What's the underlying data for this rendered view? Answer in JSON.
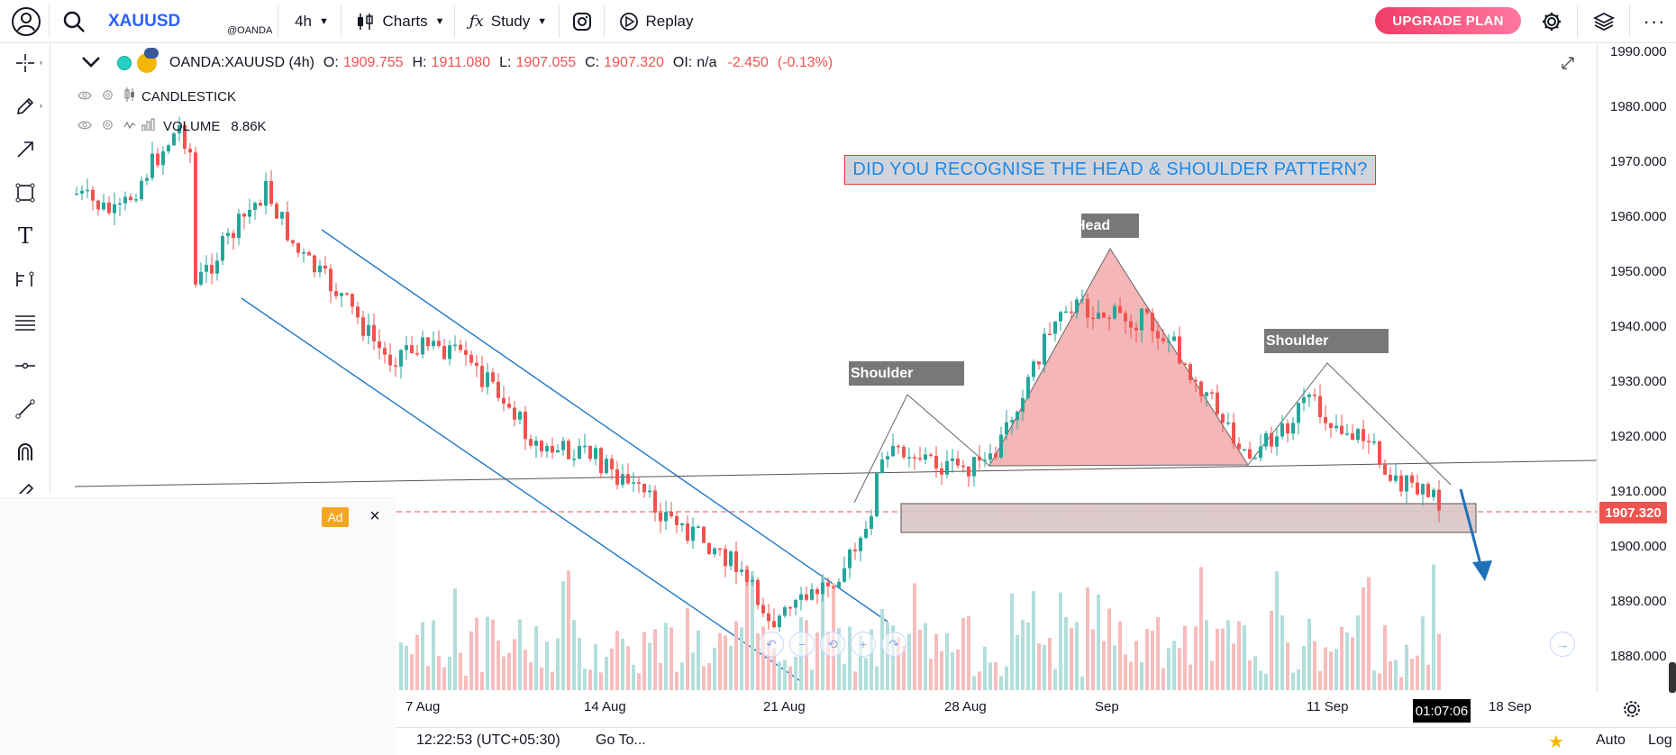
{
  "topbar": {
    "symbol": "XAUUSD",
    "exchange": "@OANDA",
    "interval": "4h",
    "charts_label": "Charts",
    "study_label": "Study",
    "replay_label": "Replay",
    "upgrade_label": "UPGRADE PLAN"
  },
  "legend": {
    "symbol_full": "OANDA:XAUUSD (4h)",
    "o_key": "O:",
    "o": "1909.755",
    "h_key": "H:",
    "h": "1911.080",
    "l_key": "L:",
    "l": "1907.055",
    "c_key": "C:",
    "c": "1907.320",
    "oi_key": "OI:",
    "oi": "n/a",
    "change": "-2.450",
    "change_pct": "(-0.13%)"
  },
  "indicators": [
    {
      "name": "CANDLESTICK",
      "value": ""
    },
    {
      "name": "VOLUME",
      "value": "8.86K"
    }
  ],
  "annotations": {
    "title": "DID YOU RECOGNISE THE HEAD & SHOULDER PATTERN?",
    "left_shoulder": "Shoulder",
    "head": "Head",
    "right_shoulder": "Shoulder"
  },
  "price_scale": {
    "labels": [
      "1990.000",
      "1980.000",
      "1970.000",
      "1960.000",
      "1950.000",
      "1940.000",
      "1930.000",
      "1920.000",
      "1910.000",
      "1900.000",
      "1890.000",
      "1880.000"
    ],
    "current": "1907.320"
  },
  "time_scale": {
    "labels": [
      "7 Aug",
      "14 Aug",
      "21 Aug",
      "28 Aug",
      "Sep",
      "11 Sep",
      "18 Sep"
    ],
    "countdown": "01:07:06"
  },
  "bottombar": {
    "clock": "12:22:53 (UTC+05:30)",
    "goto_label": "Go To...",
    "auto_label": "Auto",
    "log_label": "Log"
  },
  "ad": {
    "badge": "Ad",
    "close": "×"
  },
  "colors": {
    "accent": "#2962ff",
    "up": "#26a69a",
    "down": "#ef5350",
    "channel": "#1e78c8",
    "head_fill": "#f4b6b6",
    "zone_fill": "#d7c2c2"
  },
  "icons": [
    "user-icon",
    "search-icon",
    "candles-icon",
    "fx-icon",
    "instagram-icon",
    "replay-icon",
    "gear-icon",
    "layers-icon",
    "more-icon",
    "crosshair-icon",
    "pencil-icon",
    "arrow-icon",
    "rectangle-icon",
    "text-icon",
    "fib-icon",
    "lines-icon",
    "horizontal-line-icon",
    "trend-line-icon",
    "magnet-icon",
    "fullscreen-icon",
    "eye-icon",
    "settings-icon",
    "star-icon",
    "scroll-right-icon"
  ]
}
